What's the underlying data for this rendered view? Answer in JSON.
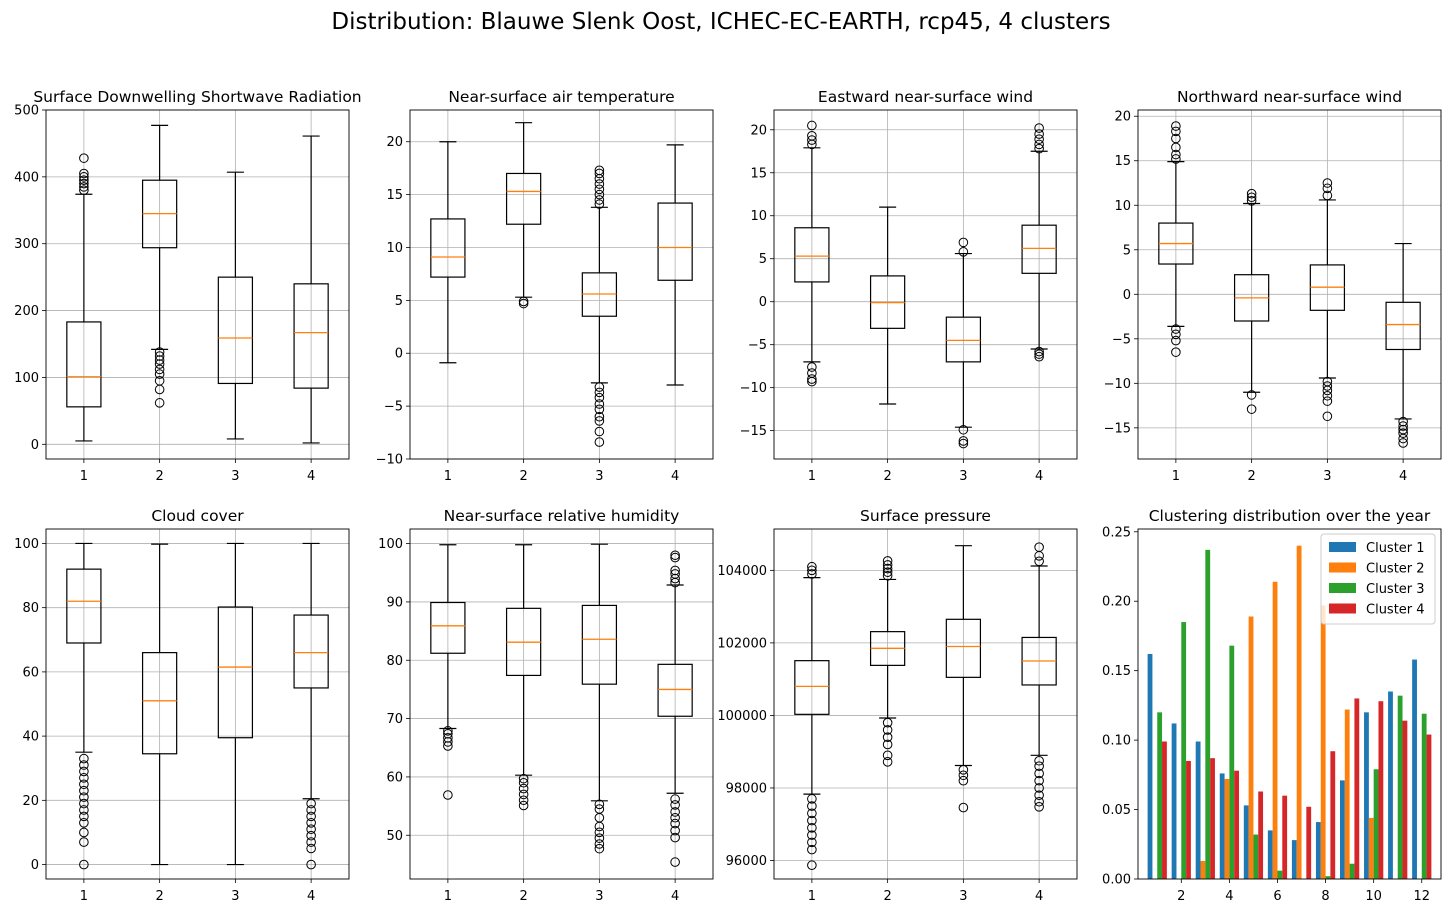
{
  "figure": {
    "title": "Distribution: Blauwe Slenk Oost, ICHEC-EC-EARTH, rcp45, 4 clusters"
  },
  "colors": {
    "median": "#ff7f0e",
    "grid": "#b0b0b0",
    "box": "#000000",
    "series": [
      "#1f77b4",
      "#ff7f0e",
      "#2ca02c",
      "#d62728"
    ]
  },
  "chart_data": [
    {
      "type": "box",
      "title": "Surface Downwelling Shortwave Radiation",
      "categories": [
        "1",
        "2",
        "3",
        "4"
      ],
      "ylim": [
        -22,
        500
      ],
      "yticks": [
        0,
        100,
        200,
        300,
        400,
        500
      ],
      "grid": true,
      "boxes": [
        {
          "q1": 56,
          "median": 101,
          "q3": 183,
          "whislo": 5,
          "whishi": 374,
          "fliers": [
            380,
            385,
            390,
            395,
            400,
            405,
            428
          ]
        },
        {
          "q1": 294,
          "median": 345,
          "q3": 395,
          "whislo": 142,
          "whishi": 477,
          "fliers": [
            62,
            82,
            95,
            105,
            112,
            120,
            126,
            132,
            138
          ]
        },
        {
          "q1": 91,
          "median": 159,
          "q3": 250,
          "whislo": 8,
          "whishi": 407,
          "fliers": []
        },
        {
          "q1": 84,
          "median": 167,
          "q3": 240,
          "whislo": 2,
          "whishi": 461,
          "fliers": []
        }
      ]
    },
    {
      "type": "box",
      "title": "Near-surface air temperature",
      "categories": [
        "1",
        "2",
        "3",
        "4"
      ],
      "ylim": [
        -10,
        23
      ],
      "yticks": [
        -10,
        -5,
        0,
        5,
        10,
        15,
        20
      ],
      "grid": true,
      "boxes": [
        {
          "q1": 7.2,
          "median": 9.1,
          "q3": 12.7,
          "whislo": -0.9,
          "whishi": 20.0,
          "fliers": []
        },
        {
          "q1": 12.2,
          "median": 15.3,
          "q3": 17.0,
          "whislo": 5.3,
          "whishi": 21.8,
          "fliers": [
            4.7,
            4.9
          ]
        },
        {
          "q1": 3.5,
          "median": 5.6,
          "q3": 7.6,
          "whislo": -2.8,
          "whishi": 13.8,
          "fliers": [
            14.1,
            14.5,
            15.0,
            15.5,
            16.0,
            16.5,
            17.0,
            17.3,
            -3.2,
            -3.7,
            -4.2,
            -4.8,
            -5.3,
            -6.0,
            -6.4,
            -7.4,
            -8.4
          ]
        },
        {
          "q1": 6.9,
          "median": 10.0,
          "q3": 14.2,
          "whislo": -3.0,
          "whishi": 19.7,
          "fliers": []
        }
      ]
    },
    {
      "type": "box",
      "title": "Eastward near-surface wind",
      "categories": [
        "1",
        "2",
        "3",
        "4"
      ],
      "ylim": [
        -18.3,
        22.3
      ],
      "yticks": [
        -15,
        -10,
        -5,
        0,
        5,
        10,
        15,
        20
      ],
      "grid": true,
      "boxes": [
        {
          "q1": 2.3,
          "median": 5.3,
          "q3": 8.6,
          "whislo": -7.0,
          "whishi": 17.9,
          "fliers": [
            18.3,
            18.8,
            19.3,
            20.5,
            -7.6,
            -8.3,
            -9.0,
            -9.3
          ]
        },
        {
          "q1": -3.1,
          "median": -0.1,
          "q3": 3.0,
          "whislo": -11.9,
          "whishi": 11.0,
          "fliers": []
        },
        {
          "q1": -7.0,
          "median": -4.5,
          "q3": -1.8,
          "whislo": -14.6,
          "whishi": 5.6,
          "fliers": [
            5.8,
            6.9,
            -14.9,
            -16.2,
            -16.5
          ]
        },
        {
          "q1": 3.3,
          "median": 6.2,
          "q3": 8.9,
          "whislo": -5.5,
          "whishi": 17.5,
          "fliers": [
            17.8,
            18.3,
            18.9,
            19.5,
            20.2,
            -5.8,
            -6.1,
            -6.4
          ]
        }
      ]
    },
    {
      "type": "box",
      "title": "Northward near-surface wind",
      "categories": [
        "1",
        "2",
        "3",
        "4"
      ],
      "ylim": [
        -18.5,
        20.7
      ],
      "yticks": [
        -15,
        -10,
        -5,
        0,
        5,
        10,
        15,
        20
      ],
      "grid": true,
      "boxes": [
        {
          "q1": 3.4,
          "median": 5.7,
          "q3": 8.0,
          "whislo": -3.6,
          "whishi": 14.9,
          "fliers": [
            15.2,
            15.7,
            16.5,
            17.5,
            18.3,
            18.9,
            -3.9,
            -4.5,
            -5.2,
            -6.5
          ]
        },
        {
          "q1": -3.0,
          "median": -0.4,
          "q3": 2.2,
          "whislo": -11.0,
          "whishi": 10.2,
          "fliers": [
            10.5,
            10.9,
            11.3,
            -11.3,
            -12.9
          ]
        },
        {
          "q1": -1.8,
          "median": 0.8,
          "q3": 3.3,
          "whislo": -9.4,
          "whishi": 10.6,
          "fliers": [
            11.1,
            11.9,
            12.5,
            -9.8,
            -10.3,
            -10.8,
            -11.4,
            -12.0,
            -13.7
          ]
        },
        {
          "q1": -6.2,
          "median": -3.4,
          "q3": -0.9,
          "whislo": -14.0,
          "whishi": 5.7,
          "fliers": [
            -14.3,
            -14.8,
            -15.2,
            -15.6,
            -16.2,
            -16.7
          ]
        }
      ]
    },
    {
      "type": "box",
      "title": "Cloud cover",
      "categories": [
        "1",
        "2",
        "3",
        "4"
      ],
      "ylim": [
        -4.5,
        104.5
      ],
      "yticks": [
        0,
        20,
        40,
        60,
        80,
        100
      ],
      "grid": true,
      "boxes": [
        {
          "q1": 69,
          "median": 82,
          "q3": 92,
          "whislo": 35,
          "whishi": 100,
          "fliers": [
            0,
            7,
            10,
            13,
            15,
            17,
            19,
            21,
            23,
            25,
            27,
            29,
            31,
            33
          ]
        },
        {
          "q1": 34.5,
          "median": 51,
          "q3": 66,
          "whislo": 0,
          "whishi": 99.8,
          "fliers": []
        },
        {
          "q1": 39.5,
          "median": 61.5,
          "q3": 80.2,
          "whislo": 0,
          "whishi": 100,
          "fliers": []
        },
        {
          "q1": 55,
          "median": 66,
          "q3": 77.7,
          "whislo": 20.5,
          "whishi": 100,
          "fliers": [
            0,
            5,
            7,
            9,
            11,
            13,
            15,
            17,
            19
          ]
        }
      ]
    },
    {
      "type": "box",
      "title": "Near-surface relative humidity",
      "categories": [
        "1",
        "2",
        "3",
        "4"
      ],
      "ylim": [
        42.5,
        102.5
      ],
      "yticks": [
        50,
        60,
        70,
        80,
        90,
        100
      ],
      "grid": true,
      "boxes": [
        {
          "q1": 81.2,
          "median": 85.9,
          "q3": 89.9,
          "whislo": 68.3,
          "whishi": 99.8,
          "fliers": [
            65.3,
            66.0,
            66.7,
            67.4,
            67.9,
            56.9
          ]
        },
        {
          "q1": 77.4,
          "median": 83.1,
          "q3": 88.9,
          "whislo": 60.3,
          "whishi": 99.8,
          "fliers": [
            55.1,
            56.0,
            57.0,
            58.0,
            59.0,
            59.7
          ]
        },
        {
          "q1": 75.9,
          "median": 83.6,
          "q3": 89.4,
          "whislo": 55.9,
          "whishi": 99.9,
          "fliers": [
            47.7,
            48.5,
            49.5,
            50.5,
            51.5,
            53.0,
            54.5,
            55.3
          ]
        },
        {
          "q1": 70.4,
          "median": 75.0,
          "q3": 79.3,
          "whislo": 57.2,
          "whishi": 92.9,
          "fliers": [
            93.3,
            94.0,
            94.8,
            95.4,
            97.6,
            98.0,
            45.4,
            49.6,
            50.8,
            52.0,
            53.0,
            54.0,
            55.2,
            56.2
          ]
        }
      ]
    },
    {
      "type": "box",
      "title": "Surface pressure",
      "categories": [
        "1",
        "2",
        "3",
        "4"
      ],
      "ylim": [
        95490,
        105140
      ],
      "yticks": [
        96000,
        98000,
        100000,
        102000,
        104000
      ],
      "grid": true,
      "boxes": [
        {
          "q1": 100030,
          "median": 100800,
          "q3": 101510,
          "whislo": 97830,
          "whishi": 103800,
          "fliers": [
            103900,
            104000,
            104100,
            95870,
            96300,
            96500,
            96700,
            96900,
            97100,
            97300,
            97500,
            97700
          ]
        },
        {
          "q1": 101380,
          "median": 101850,
          "q3": 102310,
          "whislo": 99930,
          "whishi": 103750,
          "fliers": [
            103850,
            103950,
            104050,
            104150,
            104260,
            99800,
            99600,
            99400,
            99200,
            98900,
            98720
          ]
        },
        {
          "q1": 101050,
          "median": 101900,
          "q3": 102650,
          "whislo": 98620,
          "whishi": 104680,
          "fliers": [
            98500,
            98350,
            98200,
            97460
          ]
        },
        {
          "q1": 100840,
          "median": 101500,
          "q3": 102150,
          "whislo": 98900,
          "whishi": 104120,
          "fliers": [
            104250,
            104400,
            104640,
            98750,
            98600,
            98400,
            98200,
            98000,
            97800,
            97620,
            97480
          ]
        }
      ]
    },
    {
      "type": "bar",
      "title": "Clustering distribution over the year",
      "x": [
        1,
        2,
        3,
        4,
        5,
        6,
        7,
        8,
        9,
        10,
        11,
        12
      ],
      "xlim": [
        0.2,
        12.8
      ],
      "xticks": [
        2,
        4,
        6,
        8,
        10,
        12
      ],
      "ylim": [
        0,
        0.252
      ],
      "yticks": [
        0.0,
        0.05,
        0.1,
        0.15,
        0.2,
        0.25
      ],
      "grid": false,
      "legend": "top-right",
      "series": [
        {
          "name": "Cluster 1",
          "values": [
            0.162,
            0.112,
            0.099,
            0.076,
            0.053,
            0.035,
            0.028,
            0.041,
            0.071,
            0.12,
            0.135,
            0.158
          ]
        },
        {
          "name": "Cluster 2",
          "values": [
            0.0,
            0.0,
            0.013,
            0.072,
            0.189,
            0.214,
            0.24,
            0.197,
            0.122,
            0.044,
            0.0,
            0.0
          ]
        },
        {
          "name": "Cluster 3",
          "values": [
            0.12,
            0.185,
            0.237,
            0.168,
            0.032,
            0.006,
            0.0,
            0.002,
            0.011,
            0.079,
            0.132,
            0.119
          ]
        },
        {
          "name": "Cluster 4",
          "values": [
            0.099,
            0.085,
            0.087,
            0.078,
            0.063,
            0.06,
            0.052,
            0.092,
            0.13,
            0.128,
            0.114,
            0.104
          ]
        }
      ]
    }
  ]
}
